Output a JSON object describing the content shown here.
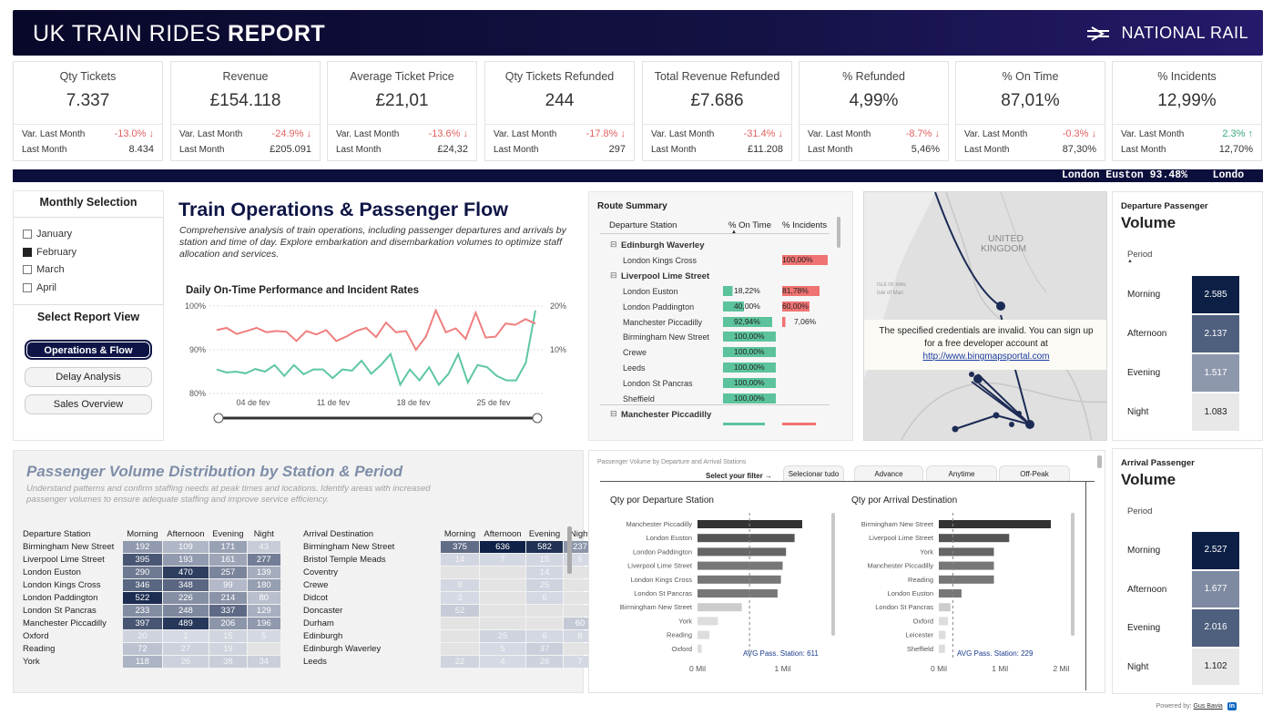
{
  "header": {
    "title_light": "UK TRAIN RIDES",
    "title_bold": "REPORT",
    "brand": "NATIONAL RAIL"
  },
  "kpis": [
    {
      "label": "Qty Tickets",
      "value": "7.337",
      "var_label": "Var. Last Month",
      "var": "-13.0% ↓",
      "var_dir": "neg",
      "lm_label": "Last Month",
      "lm": "8.434"
    },
    {
      "label": "Revenue",
      "value": "£154.118",
      "var_label": "Var. Last Month",
      "var": "-24.9% ↓",
      "var_dir": "neg",
      "lm_label": "Last Month",
      "lm": "£205.091"
    },
    {
      "label": "Average Ticket Price",
      "value": "£21,01",
      "var_label": "Var. Last Month",
      "var": "-13.6% ↓",
      "var_dir": "neg",
      "lm_label": "Last Month",
      "lm": "£24,32"
    },
    {
      "label": "Qty Tickets Refunded",
      "value": "244",
      "var_label": "Var. Last Month",
      "var": "-17.8% ↓",
      "var_dir": "neg",
      "lm_label": "Last Month",
      "lm": "297"
    },
    {
      "label": "Total Revenue Refunded",
      "value": "£7.686",
      "var_label": "Var. Last Month",
      "var": "-31.4% ↓",
      "var_dir": "neg",
      "lm_label": "Last Month",
      "lm": "£11.208"
    },
    {
      "label": "% Refunded",
      "value": "4,99%",
      "var_label": "Var. Last Month",
      "var": "-8.7% ↓",
      "var_dir": "neg",
      "lm_label": "Last Month",
      "lm": "5,46%"
    },
    {
      "label": "% On Time",
      "value": "87,01%",
      "var_label": "Var. Last Month",
      "var": "-0.3% ↓",
      "var_dir": "neg",
      "lm_label": "Last Month",
      "lm": "87,30%"
    },
    {
      "label": "% Incidents",
      "value": "12,99%",
      "var_label": "Var. Last Month",
      "var": "2.3% ↑",
      "var_dir": "pos",
      "lm_label": "Last Month",
      "lm": "12,70%"
    }
  ],
  "ticker": "London Euston 93.48%    Londo",
  "slicer": {
    "title": "Monthly Selection",
    "months": [
      {
        "label": "January",
        "checked": false
      },
      {
        "label": "February",
        "checked": true
      },
      {
        "label": "March",
        "checked": false
      },
      {
        "label": "April",
        "checked": false
      }
    ],
    "report_view_title": "Select Report View",
    "buttons": [
      {
        "label": "Operations & Flow",
        "active": true
      },
      {
        "label": "Delay Analysis",
        "active": false
      },
      {
        "label": "Sales Overview",
        "active": false
      }
    ]
  },
  "ops": {
    "title": "Train Operations & Passenger Flow",
    "description": "Comprehensive analysis of train operations, including passenger departures and arrivals by station and time of day. Explore embarkation and disembarkation volumes to optimize staff allocation and services."
  },
  "chart_data": [
    {
      "type": "line",
      "title": "Daily On-Time Performance and Incident Rates",
      "x_ticks": [
        "04 de fev",
        "11 de fev",
        "18 de fev",
        "25 de fev"
      ],
      "y_left_ticks": [
        "100%",
        "90%",
        "80%"
      ],
      "y_left_range": [
        80,
        100
      ],
      "y_right_ticks": [
        "20%",
        "10%"
      ],
      "y_right_range": [
        0,
        20
      ],
      "series": [
        {
          "axis": "left",
          "color": "#5ec7a0",
          "values": [
            85.5,
            84.8,
            85,
            84.6,
            85.6,
            85,
            86.5,
            84,
            86.5,
            84.4,
            85.5,
            85.5,
            83.5,
            85.5,
            85.2,
            87.5,
            84.5,
            86.5,
            89,
            82,
            85.5,
            83,
            86,
            82,
            84.5,
            89,
            82.5,
            86.5,
            86,
            84,
            83,
            83,
            87,
            99
          ]
        },
        {
          "axis": "right",
          "color": "#ef7f7f",
          "values": [
            14.5,
            15,
            13.6,
            14.3,
            15,
            14,
            14.3,
            14.1,
            12,
            14.3,
            13.5,
            14.5,
            12,
            13,
            14.3,
            15,
            12.9,
            16.2,
            14,
            14.3,
            10,
            13,
            19,
            14,
            14.9,
            12.5,
            18.5,
            12.8,
            13,
            16,
            15.7,
            17,
            16
          ]
        }
      ]
    },
    {
      "type": "bar",
      "title": "Qty por Departure Station",
      "categories": [
        "Manchester Piccadilly",
        "London Euston",
        "London Paddington",
        "Liverpool Lime Street",
        "London Kings Cross",
        "London St Pancras",
        "Birmingham New Street",
        "York",
        "Reading",
        "Oxford"
      ],
      "values": [
        1.23,
        1.14,
        1.04,
        1.0,
        0.98,
        0.94,
        0.52,
        0.24,
        0.14,
        0.05
      ],
      "x_ticks": [
        "0 Mil",
        "1 Mil"
      ],
      "xlim": [
        0,
        1.6
      ],
      "annotation": "AVG Pass. Station: 611",
      "avg": 0.611
    },
    {
      "type": "bar",
      "title": "Qty por Arrival Destination",
      "categories": [
        "Birmingham New Street",
        "Liverpool Lime Street",
        "York",
        "Manchester Piccadilly",
        "Reading",
        "London Euston",
        "London St Pancras",
        "Oxford",
        "Leicester",
        "Sheffield"
      ],
      "values": [
        1.83,
        1.15,
        0.9,
        0.9,
        0.9,
        0.37,
        0.19,
        0.15,
        0.11,
        0.1
      ],
      "x_ticks": [
        "0 Mil",
        "1 Mil",
        "2 Mil"
      ],
      "xlim": [
        0,
        2.25
      ],
      "annotation": "AVG Pass. Station: 229",
      "avg": 0.229
    }
  ],
  "route_summary": {
    "title": "Route Summary",
    "headers": [
      "Departure Station",
      "% On Time",
      "% Incidents"
    ],
    "rows": [
      {
        "group": true,
        "name": "Edinburgh Waverley"
      },
      {
        "name": "London Kings Cross",
        "ontime": "",
        "ontime_v": 0,
        "inc": "100,00%",
        "inc_v": 100
      },
      {
        "group": true,
        "name": "Liverpool Lime Street"
      },
      {
        "name": "London Euston",
        "ontime": "18,22%",
        "ontime_v": 18.22,
        "inc": "81,78%",
        "inc_v": 81.78
      },
      {
        "name": "London Paddington",
        "ontime": "40,00%",
        "ontime_v": 40,
        "inc": "60,00%",
        "inc_v": 60
      },
      {
        "name": "Manchester Piccadilly",
        "ontime": "92,94%",
        "ontime_v": 92.94,
        "inc": "7,06%",
        "inc_v": 7.06
      },
      {
        "name": "Birmingham New Street",
        "ontime": "100,00%",
        "ontime_v": 100,
        "inc": "",
        "inc_v": 0
      },
      {
        "name": "Crewe",
        "ontime": "100,00%",
        "ontime_v": 100,
        "inc": "",
        "inc_v": 0
      },
      {
        "name": "Leeds",
        "ontime": "100,00%",
        "ontime_v": 100,
        "inc": "",
        "inc_v": 0
      },
      {
        "name": "London St Pancras",
        "ontime": "100,00%",
        "ontime_v": 100,
        "inc": "",
        "inc_v": 0
      },
      {
        "name": "Sheffield",
        "ontime": "100,00%",
        "ontime_v": 100,
        "inc": "",
        "inc_v": 0
      },
      {
        "group": true,
        "name": "Manchester Piccadilly"
      }
    ]
  },
  "map": {
    "country_label_1": "UNITED",
    "country_label_2": "KINGDOM",
    "sea_label_1": "ISLE OF MAN",
    "sea_label_2": "Isle of Man",
    "error_line1": "The specified credentials are invalid. You can sign up",
    "error_line2": "for a free developer account at",
    "error_link": "http://www.bingmapsportal.com"
  },
  "departure_volume": {
    "title1": "Departure Passenger",
    "title2": "Volume",
    "period_label": "Period",
    "rows": [
      {
        "label": "Morning",
        "value": "2.585",
        "color": "#0c2046"
      },
      {
        "label": "Afternoon",
        "value": "2.137",
        "color": "#4f5f7e"
      },
      {
        "label": "Evening",
        "value": "1.517",
        "color": "#8d98ad"
      },
      {
        "label": "Night",
        "value": "1.083",
        "color": "#e8e8e8"
      }
    ]
  },
  "arrival_volume": {
    "title1": "Arrival Passenger",
    "title2": "Volume",
    "period_label": "Period",
    "rows": [
      {
        "label": "Morning",
        "value": "2.527",
        "color": "#0c2046"
      },
      {
        "label": "Afternoon",
        "value": "1.677",
        "color": "#7e8aa1"
      },
      {
        "label": "Evening",
        "value": "2.016",
        "color": "#4f5f7e"
      },
      {
        "label": "Night",
        "value": "1.102",
        "color": "#e8e8e8"
      }
    ]
  },
  "distribution": {
    "title": "Passenger Volume Distribution by Station & Period",
    "description": "Understand patterns and confirm staffing needs at peak times and locations. Identify areas with increased passenger volumes to ensure adequate staffing and improve service efficiency.",
    "dep_headers": [
      "Departure Station",
      "Morning",
      "Afternoon",
      "Evening",
      "Night"
    ],
    "dep_rows": [
      [
        "Birmingham New Street",
        "192",
        "109",
        "171",
        "43"
      ],
      [
        "Liverpool Lime Street",
        "395",
        "193",
        "161",
        "277"
      ],
      [
        "London Euston",
        "290",
        "470",
        "257",
        "139"
      ],
      [
        "London Kings Cross",
        "346",
        "348",
        "99",
        "180"
      ],
      [
        "London Paddington",
        "522",
        "226",
        "214",
        "80"
      ],
      [
        "London St Pancras",
        "233",
        "248",
        "337",
        "129"
      ],
      [
        "Manchester Piccadilly",
        "397",
        "489",
        "206",
        "196"
      ],
      [
        "Oxford",
        "20",
        "1",
        "15",
        "5"
      ],
      [
        "Reading",
        "72",
        "27",
        "19",
        ""
      ],
      [
        "York",
        "118",
        "26",
        "38",
        "34"
      ]
    ],
    "arr_headers": [
      "Arrival Destination",
      "Morning",
      "Afternoon",
      "Evening",
      "Night"
    ],
    "arr_rows": [
      [
        "Birmingham New Street",
        "375",
        "636",
        "582",
        "237"
      ],
      [
        "Bristol Temple Meads",
        "14",
        "7",
        "15",
        "5"
      ],
      [
        "Coventry",
        "",
        "",
        "14",
        ""
      ],
      [
        "Crewe",
        "9",
        "",
        "25",
        ""
      ],
      [
        "Didcot",
        "3",
        "",
        "6",
        ""
      ],
      [
        "Doncaster",
        "52",
        "",
        "",
        ""
      ],
      [
        "Durham",
        "",
        "",
        "",
        "60"
      ],
      [
        "Edinburgh",
        "",
        "25",
        "6",
        "8"
      ],
      [
        "Edinburgh Waverley",
        "",
        "5",
        "37",
        ""
      ],
      [
        "Leeds",
        "22",
        "4",
        "26",
        "7"
      ]
    ]
  },
  "bars_panel": {
    "caption": "Passenger Volume by Departure and Arrival Stations",
    "filter_label": "Select your filter",
    "filter_arrow": "→",
    "filters": [
      "Selecionar tudo",
      "Advance",
      "Anytime",
      "Off-Peak"
    ]
  },
  "footer": {
    "powered": "Powered by:",
    "author": "Gus Bavia",
    "li": "in"
  }
}
